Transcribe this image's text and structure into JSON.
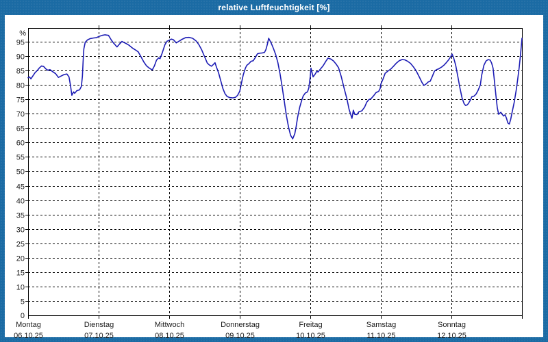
{
  "window": {
    "title": "relative Luftfeuchtigkeit [%]",
    "frame_color": "#1b6ba4",
    "title_text_color": "#ffffff"
  },
  "chart_data": {
    "type": "line",
    "title": "relative Luftfeuchtigkeit [%]",
    "ylabel": "%",
    "xlabel": "",
    "unit_label": "%",
    "origin_label": "0",
    "ylim": [
      0,
      100
    ],
    "x_range_days": 7,
    "grid": "dashed",
    "legend_position": "none",
    "line_color": "#1c1cb4",
    "grid_color": "#000000",
    "text_color": "#1a1a1a",
    "y_ticks": [
      95,
      90,
      85,
      80,
      75,
      70,
      65,
      60,
      55,
      50,
      45,
      40,
      35,
      30,
      25,
      20,
      15,
      10,
      5
    ],
    "x_days": [
      {
        "name": "Montag",
        "date": "06.10.25"
      },
      {
        "name": "Dienstag",
        "date": "07.10.25"
      },
      {
        "name": "Mittwoch",
        "date": "08.10.25"
      },
      {
        "name": "Donnerstag",
        "date": "09.10.25"
      },
      {
        "name": "Freitag",
        "date": "10.10.25"
      },
      {
        "name": "Samstag",
        "date": "11.10.25"
      },
      {
        "name": "Sonntag",
        "date": "12.10.25"
      }
    ],
    "series": [
      {
        "name": "relative Luftfeuchtigkeit [%]",
        "points": [
          [
            0.0,
            82.5
          ],
          [
            0.02,
            82.8
          ],
          [
            0.04,
            82.1
          ],
          [
            0.07,
            83.2
          ],
          [
            0.1,
            84.3
          ],
          [
            0.13,
            85.0
          ],
          [
            0.16,
            85.9
          ],
          [
            0.19,
            86.6
          ],
          [
            0.22,
            86.4
          ],
          [
            0.25,
            85.6
          ],
          [
            0.28,
            85.1
          ],
          [
            0.31,
            85.3
          ],
          [
            0.35,
            84.6
          ],
          [
            0.39,
            83.9
          ],
          [
            0.43,
            82.6
          ],
          [
            0.47,
            83.1
          ],
          [
            0.51,
            83.6
          ],
          [
            0.55,
            83.8
          ],
          [
            0.58,
            82.8
          ],
          [
            0.6,
            80.0
          ],
          [
            0.62,
            76.4
          ],
          [
            0.645,
            77.6
          ],
          [
            0.66,
            77.1
          ],
          [
            0.69,
            78.0
          ],
          [
            0.73,
            78.3
          ],
          [
            0.755,
            79.5
          ],
          [
            0.77,
            83.0
          ],
          [
            0.78,
            88.0
          ],
          [
            0.79,
            92.5
          ],
          [
            0.81,
            94.8
          ],
          [
            0.84,
            95.6
          ],
          [
            0.88,
            96.1
          ],
          [
            0.93,
            96.3
          ],
          [
            0.97,
            96.4
          ],
          [
            1.0,
            96.8
          ],
          [
            1.05,
            97.2
          ],
          [
            1.09,
            97.4
          ],
          [
            1.14,
            97.2
          ],
          [
            1.18,
            95.6
          ],
          [
            1.21,
            94.6
          ],
          [
            1.26,
            93.2
          ],
          [
            1.3,
            94.3
          ],
          [
            1.33,
            95.1
          ],
          [
            1.38,
            94.5
          ],
          [
            1.43,
            93.8
          ],
          [
            1.48,
            92.8
          ],
          [
            1.53,
            92.0
          ],
          [
            1.56,
            91.5
          ],
          [
            1.6,
            89.8
          ],
          [
            1.64,
            88.0
          ],
          [
            1.68,
            86.6
          ],
          [
            1.72,
            85.8
          ],
          [
            1.76,
            85.2
          ],
          [
            1.79,
            86.6
          ],
          [
            1.82,
            88.6
          ],
          [
            1.85,
            89.4
          ],
          [
            1.87,
            89.1
          ],
          [
            1.9,
            91.0
          ],
          [
            1.94,
            94.0
          ],
          [
            1.97,
            95.2
          ],
          [
            2.0,
            95.5
          ],
          [
            2.03,
            95.9
          ],
          [
            2.06,
            95.7
          ],
          [
            2.1,
            94.6
          ],
          [
            2.14,
            95.2
          ],
          [
            2.18,
            95.8
          ],
          [
            2.23,
            96.4
          ],
          [
            2.28,
            96.5
          ],
          [
            2.33,
            96.2
          ],
          [
            2.38,
            95.3
          ],
          [
            2.42,
            94.0
          ],
          [
            2.46,
            92.2
          ],
          [
            2.5,
            89.9
          ],
          [
            2.54,
            87.6
          ],
          [
            2.57,
            86.9
          ],
          [
            2.6,
            86.5
          ],
          [
            2.63,
            87.2
          ],
          [
            2.65,
            87.7
          ],
          [
            2.67,
            86.2
          ],
          [
            2.7,
            84.2
          ],
          [
            2.73,
            81.5
          ],
          [
            2.76,
            78.8
          ],
          [
            2.79,
            77.0
          ],
          [
            2.82,
            76.0
          ],
          [
            2.86,
            75.6
          ],
          [
            2.9,
            75.5
          ],
          [
            2.94,
            75.7
          ],
          [
            2.97,
            76.4
          ],
          [
            3.0,
            77.8
          ],
          [
            3.02,
            80.2
          ],
          [
            3.05,
            83.5
          ],
          [
            3.08,
            85.8
          ],
          [
            3.1,
            86.8
          ],
          [
            3.13,
            87.4
          ],
          [
            3.16,
            88.2
          ],
          [
            3.19,
            88.4
          ],
          [
            3.22,
            89.5
          ],
          [
            3.25,
            90.8
          ],
          [
            3.28,
            91.0
          ],
          [
            3.32,
            91.1
          ],
          [
            3.35,
            91.3
          ],
          [
            3.37,
            92.2
          ],
          [
            3.39,
            94.0
          ],
          [
            3.41,
            96.2
          ],
          [
            3.44,
            94.8
          ],
          [
            3.46,
            93.7
          ],
          [
            3.48,
            92.5
          ],
          [
            3.51,
            90.5
          ],
          [
            3.54,
            87.8
          ],
          [
            3.57,
            84.0
          ],
          [
            3.6,
            79.5
          ],
          [
            3.63,
            74.5
          ],
          [
            3.66,
            69.5
          ],
          [
            3.69,
            65.5
          ],
          [
            3.72,
            62.5
          ],
          [
            3.75,
            61.3
          ],
          [
            3.78,
            63.0
          ],
          [
            3.8,
            65.6
          ],
          [
            3.82,
            68.8
          ],
          [
            3.85,
            72.3
          ],
          [
            3.88,
            74.8
          ],
          [
            3.9,
            76.2
          ],
          [
            3.93,
            77.2
          ],
          [
            3.96,
            77.6
          ],
          [
            3.98,
            79.0
          ],
          [
            4.0,
            83.0
          ],
          [
            4.01,
            85.8
          ],
          [
            4.04,
            82.8
          ],
          [
            4.07,
            83.8
          ],
          [
            4.09,
            84.7
          ],
          [
            4.11,
            84.5
          ],
          [
            4.14,
            85.4
          ],
          [
            4.18,
            86.6
          ],
          [
            4.22,
            88.2
          ],
          [
            4.25,
            89.3
          ],
          [
            4.29,
            89.0
          ],
          [
            4.33,
            88.3
          ],
          [
            4.37,
            87.1
          ],
          [
            4.4,
            86.0
          ],
          [
            4.44,
            82.8
          ],
          [
            4.48,
            78.8
          ],
          [
            4.52,
            75.0
          ],
          [
            4.55,
            71.5
          ],
          [
            4.59,
            68.4
          ],
          [
            4.61,
            71.2
          ],
          [
            4.63,
            69.8
          ],
          [
            4.66,
            69.7
          ],
          [
            4.69,
            70.7
          ],
          [
            4.73,
            71.0
          ],
          [
            4.77,
            72.3
          ],
          [
            4.8,
            74.0
          ],
          [
            4.83,
            74.9
          ],
          [
            4.86,
            75.2
          ],
          [
            4.9,
            76.3
          ],
          [
            4.93,
            77.3
          ],
          [
            4.97,
            77.8
          ],
          [
            4.99,
            78.8
          ],
          [
            5.0,
            80.3
          ],
          [
            5.03,
            82.0
          ],
          [
            5.06,
            84.0
          ],
          [
            5.1,
            84.8
          ],
          [
            5.14,
            85.5
          ],
          [
            5.18,
            86.5
          ],
          [
            5.22,
            87.6
          ],
          [
            5.26,
            88.4
          ],
          [
            5.3,
            88.8
          ],
          [
            5.34,
            88.7
          ],
          [
            5.38,
            88.2
          ],
          [
            5.42,
            87.5
          ],
          [
            5.46,
            86.3
          ],
          [
            5.5,
            84.9
          ],
          [
            5.54,
            83.0
          ],
          [
            5.58,
            81.0
          ],
          [
            5.61,
            79.8
          ],
          [
            5.64,
            80.3
          ],
          [
            5.67,
            81.0
          ],
          [
            5.7,
            81.3
          ],
          [
            5.73,
            83.0
          ],
          [
            5.76,
            84.8
          ],
          [
            5.79,
            85.3
          ],
          [
            5.82,
            85.6
          ],
          [
            5.86,
            86.2
          ],
          [
            5.9,
            87.0
          ],
          [
            5.93,
            87.8
          ],
          [
            5.96,
            88.7
          ],
          [
            5.99,
            89.8
          ],
          [
            6.0,
            90.3
          ],
          [
            6.01,
            90.7
          ],
          [
            6.03,
            89.5
          ],
          [
            6.06,
            86.9
          ],
          [
            6.09,
            83.0
          ],
          [
            6.12,
            79.0
          ],
          [
            6.15,
            75.5
          ],
          [
            6.18,
            73.5
          ],
          [
            6.2,
            72.9
          ],
          [
            6.22,
            73.0
          ],
          [
            6.24,
            73.5
          ],
          [
            6.27,
            74.8
          ],
          [
            6.29,
            75.9
          ],
          [
            6.32,
            76.1
          ],
          [
            6.35,
            76.8
          ],
          [
            6.38,
            78.2
          ],
          [
            6.41,
            80.0
          ],
          [
            6.43,
            83.5
          ],
          [
            6.46,
            86.8
          ],
          [
            6.49,
            88.3
          ],
          [
            6.52,
            88.8
          ],
          [
            6.55,
            88.6
          ],
          [
            6.57,
            87.6
          ],
          [
            6.59,
            85.8
          ],
          [
            6.61,
            81.4
          ],
          [
            6.63,
            76.5
          ],
          [
            6.65,
            72.0
          ],
          [
            6.67,
            69.8
          ],
          [
            6.7,
            70.5
          ],
          [
            6.72,
            69.8
          ],
          [
            6.74,
            69.2
          ],
          [
            6.76,
            69.6
          ],
          [
            6.78,
            68.5
          ],
          [
            6.8,
            66.8
          ],
          [
            6.82,
            66.4
          ],
          [
            6.84,
            68.0
          ],
          [
            6.86,
            70.5
          ],
          [
            6.89,
            74.0
          ],
          [
            6.92,
            78.5
          ],
          [
            6.94,
            82.0
          ],
          [
            6.96,
            86.0
          ],
          [
            6.98,
            90.5
          ],
          [
            6.99,
            93.5
          ],
          [
            7.0,
            96.2
          ]
        ]
      }
    ]
  }
}
